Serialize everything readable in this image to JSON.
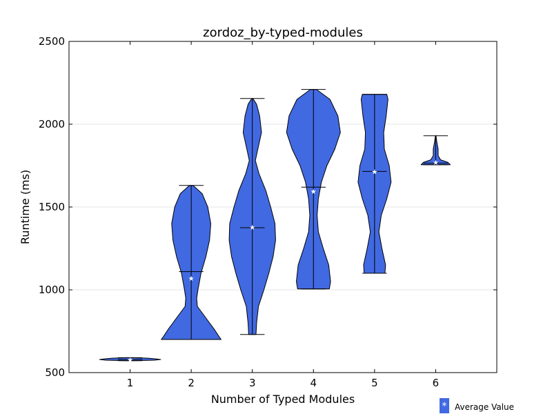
{
  "chart_data": {
    "type": "violin",
    "title": "zordoz_by-typed-modules",
    "xlabel": "Number of Typed Modules",
    "ylabel": "Runtime (ms)",
    "xlim": [
      0,
      7
    ],
    "ylim": [
      500,
      2500
    ],
    "xticks": [
      1,
      2,
      3,
      4,
      5,
      6
    ],
    "yticks": [
      500,
      1000,
      1500,
      2000,
      2500
    ],
    "grid": "y",
    "violin_color": "#4169e1",
    "legend": {
      "label": "Average Value",
      "placement": "bottom-right"
    },
    "violins": [
      {
        "x": 1,
        "min": 572,
        "max": 590,
        "median": 579,
        "mean": 579,
        "density": [
          [
            572,
            0.05
          ],
          [
            575,
            0.4
          ],
          [
            579,
            0.5
          ],
          [
            583,
            0.42
          ],
          [
            587,
            0.3
          ],
          [
            590,
            0.05
          ]
        ]
      },
      {
        "x": 2,
        "min": 700,
        "max": 1630,
        "median": 1110,
        "mean": 1070,
        "density": [
          [
            700,
            0.49
          ],
          [
            720,
            0.45
          ],
          [
            760,
            0.38
          ],
          [
            800,
            0.3
          ],
          [
            850,
            0.2
          ],
          [
            900,
            0.1
          ],
          [
            950,
            0.09
          ],
          [
            1000,
            0.11
          ],
          [
            1100,
            0.16
          ],
          [
            1200,
            0.24
          ],
          [
            1300,
            0.3
          ],
          [
            1400,
            0.32
          ],
          [
            1500,
            0.27
          ],
          [
            1580,
            0.18
          ],
          [
            1630,
            0.03
          ]
        ]
      },
      {
        "x": 3,
        "min": 730,
        "max": 2155,
        "median": 1375,
        "mean": 1380,
        "density": [
          [
            730,
            0.06
          ],
          [
            800,
            0.07
          ],
          [
            900,
            0.1
          ],
          [
            1000,
            0.19
          ],
          [
            1100,
            0.27
          ],
          [
            1200,
            0.34
          ],
          [
            1300,
            0.38
          ],
          [
            1400,
            0.37
          ],
          [
            1500,
            0.3
          ],
          [
            1600,
            0.22
          ],
          [
            1700,
            0.11
          ],
          [
            1780,
            0.05
          ],
          [
            1850,
            0.09
          ],
          [
            1950,
            0.15
          ],
          [
            2050,
            0.12
          ],
          [
            2120,
            0.07
          ],
          [
            2155,
            0.01
          ]
        ]
      },
      {
        "x": 4,
        "min": 1005,
        "max": 2210,
        "median": 1620,
        "mean": 1595,
        "density": [
          [
            1005,
            0.26
          ],
          [
            1050,
            0.28
          ],
          [
            1150,
            0.25
          ],
          [
            1250,
            0.16
          ],
          [
            1350,
            0.08
          ],
          [
            1450,
            0.06
          ],
          [
            1550,
            0.08
          ],
          [
            1650,
            0.13
          ],
          [
            1750,
            0.22
          ],
          [
            1850,
            0.35
          ],
          [
            1950,
            0.44
          ],
          [
            2050,
            0.4
          ],
          [
            2150,
            0.27
          ],
          [
            2210,
            0.05
          ]
        ]
      },
      {
        "x": 5,
        "min": 1100,
        "max": 2180,
        "median": 1715,
        "mean": 1715,
        "density": [
          [
            1100,
            0.17
          ],
          [
            1150,
            0.18
          ],
          [
            1250,
            0.12
          ],
          [
            1350,
            0.07
          ],
          [
            1450,
            0.11
          ],
          [
            1550,
            0.2
          ],
          [
            1650,
            0.27
          ],
          [
            1750,
            0.24
          ],
          [
            1850,
            0.16
          ],
          [
            1950,
            0.15
          ],
          [
            2050,
            0.19
          ],
          [
            2150,
            0.22
          ],
          [
            2180,
            0.2
          ]
        ]
      },
      {
        "x": 6,
        "min": 1755,
        "max": 1930,
        "median": 1765,
        "mean": 1770,
        "density": [
          [
            1755,
            0.24
          ],
          [
            1770,
            0.2
          ],
          [
            1785,
            0.08
          ],
          [
            1810,
            0.04
          ],
          [
            1850,
            0.04
          ],
          [
            1890,
            0.02
          ],
          [
            1930,
            0.005
          ]
        ]
      }
    ]
  }
}
